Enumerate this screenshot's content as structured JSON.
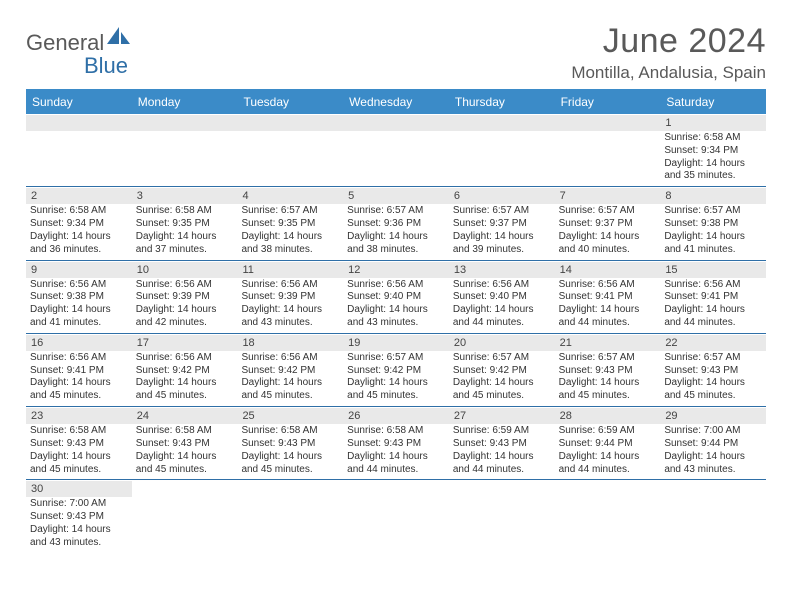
{
  "logo": {
    "word1": "General",
    "word2": "Blue",
    "brand_color": "#2f6fa7",
    "text_color": "#595959"
  },
  "title": "June 2024",
  "location": "Montilla, Andalusia, Spain",
  "colors": {
    "header_bg": "#3b8bc8",
    "header_text": "#ffffff",
    "daynum_bg": "#e9e9e9",
    "week_border": "#2f6fa7",
    "body_text": "#333333"
  },
  "day_headers": [
    "Sunday",
    "Monday",
    "Tuesday",
    "Wednesday",
    "Thursday",
    "Friday",
    "Saturday"
  ],
  "weeks": [
    [
      null,
      null,
      null,
      null,
      null,
      null,
      {
        "num": "1",
        "sunrise": "Sunrise: 6:58 AM",
        "sunset": "Sunset: 9:34 PM",
        "daylight": "Daylight: 14 hours and 35 minutes."
      }
    ],
    [
      {
        "num": "2",
        "sunrise": "Sunrise: 6:58 AM",
        "sunset": "Sunset: 9:34 PM",
        "daylight": "Daylight: 14 hours and 36 minutes."
      },
      {
        "num": "3",
        "sunrise": "Sunrise: 6:58 AM",
        "sunset": "Sunset: 9:35 PM",
        "daylight": "Daylight: 14 hours and 37 minutes."
      },
      {
        "num": "4",
        "sunrise": "Sunrise: 6:57 AM",
        "sunset": "Sunset: 9:35 PM",
        "daylight": "Daylight: 14 hours and 38 minutes."
      },
      {
        "num": "5",
        "sunrise": "Sunrise: 6:57 AM",
        "sunset": "Sunset: 9:36 PM",
        "daylight": "Daylight: 14 hours and 38 minutes."
      },
      {
        "num": "6",
        "sunrise": "Sunrise: 6:57 AM",
        "sunset": "Sunset: 9:37 PM",
        "daylight": "Daylight: 14 hours and 39 minutes."
      },
      {
        "num": "7",
        "sunrise": "Sunrise: 6:57 AM",
        "sunset": "Sunset: 9:37 PM",
        "daylight": "Daylight: 14 hours and 40 minutes."
      },
      {
        "num": "8",
        "sunrise": "Sunrise: 6:57 AM",
        "sunset": "Sunset: 9:38 PM",
        "daylight": "Daylight: 14 hours and 41 minutes."
      }
    ],
    [
      {
        "num": "9",
        "sunrise": "Sunrise: 6:56 AM",
        "sunset": "Sunset: 9:38 PM",
        "daylight": "Daylight: 14 hours and 41 minutes."
      },
      {
        "num": "10",
        "sunrise": "Sunrise: 6:56 AM",
        "sunset": "Sunset: 9:39 PM",
        "daylight": "Daylight: 14 hours and 42 minutes."
      },
      {
        "num": "11",
        "sunrise": "Sunrise: 6:56 AM",
        "sunset": "Sunset: 9:39 PM",
        "daylight": "Daylight: 14 hours and 43 minutes."
      },
      {
        "num": "12",
        "sunrise": "Sunrise: 6:56 AM",
        "sunset": "Sunset: 9:40 PM",
        "daylight": "Daylight: 14 hours and 43 minutes."
      },
      {
        "num": "13",
        "sunrise": "Sunrise: 6:56 AM",
        "sunset": "Sunset: 9:40 PM",
        "daylight": "Daylight: 14 hours and 44 minutes."
      },
      {
        "num": "14",
        "sunrise": "Sunrise: 6:56 AM",
        "sunset": "Sunset: 9:41 PM",
        "daylight": "Daylight: 14 hours and 44 minutes."
      },
      {
        "num": "15",
        "sunrise": "Sunrise: 6:56 AM",
        "sunset": "Sunset: 9:41 PM",
        "daylight": "Daylight: 14 hours and 44 minutes."
      }
    ],
    [
      {
        "num": "16",
        "sunrise": "Sunrise: 6:56 AM",
        "sunset": "Sunset: 9:41 PM",
        "daylight": "Daylight: 14 hours and 45 minutes."
      },
      {
        "num": "17",
        "sunrise": "Sunrise: 6:56 AM",
        "sunset": "Sunset: 9:42 PM",
        "daylight": "Daylight: 14 hours and 45 minutes."
      },
      {
        "num": "18",
        "sunrise": "Sunrise: 6:56 AM",
        "sunset": "Sunset: 9:42 PM",
        "daylight": "Daylight: 14 hours and 45 minutes."
      },
      {
        "num": "19",
        "sunrise": "Sunrise: 6:57 AM",
        "sunset": "Sunset: 9:42 PM",
        "daylight": "Daylight: 14 hours and 45 minutes."
      },
      {
        "num": "20",
        "sunrise": "Sunrise: 6:57 AM",
        "sunset": "Sunset: 9:42 PM",
        "daylight": "Daylight: 14 hours and 45 minutes."
      },
      {
        "num": "21",
        "sunrise": "Sunrise: 6:57 AM",
        "sunset": "Sunset: 9:43 PM",
        "daylight": "Daylight: 14 hours and 45 minutes."
      },
      {
        "num": "22",
        "sunrise": "Sunrise: 6:57 AM",
        "sunset": "Sunset: 9:43 PM",
        "daylight": "Daylight: 14 hours and 45 minutes."
      }
    ],
    [
      {
        "num": "23",
        "sunrise": "Sunrise: 6:58 AM",
        "sunset": "Sunset: 9:43 PM",
        "daylight": "Daylight: 14 hours and 45 minutes."
      },
      {
        "num": "24",
        "sunrise": "Sunrise: 6:58 AM",
        "sunset": "Sunset: 9:43 PM",
        "daylight": "Daylight: 14 hours and 45 minutes."
      },
      {
        "num": "25",
        "sunrise": "Sunrise: 6:58 AM",
        "sunset": "Sunset: 9:43 PM",
        "daylight": "Daylight: 14 hours and 45 minutes."
      },
      {
        "num": "26",
        "sunrise": "Sunrise: 6:58 AM",
        "sunset": "Sunset: 9:43 PM",
        "daylight": "Daylight: 14 hours and 44 minutes."
      },
      {
        "num": "27",
        "sunrise": "Sunrise: 6:59 AM",
        "sunset": "Sunset: 9:43 PM",
        "daylight": "Daylight: 14 hours and 44 minutes."
      },
      {
        "num": "28",
        "sunrise": "Sunrise: 6:59 AM",
        "sunset": "Sunset: 9:44 PM",
        "daylight": "Daylight: 14 hours and 44 minutes."
      },
      {
        "num": "29",
        "sunrise": "Sunrise: 7:00 AM",
        "sunset": "Sunset: 9:44 PM",
        "daylight": "Daylight: 14 hours and 43 minutes."
      }
    ],
    [
      {
        "num": "30",
        "sunrise": "Sunrise: 7:00 AM",
        "sunset": "Sunset: 9:43 PM",
        "daylight": "Daylight: 14 hours and 43 minutes."
      },
      null,
      null,
      null,
      null,
      null,
      null
    ]
  ]
}
